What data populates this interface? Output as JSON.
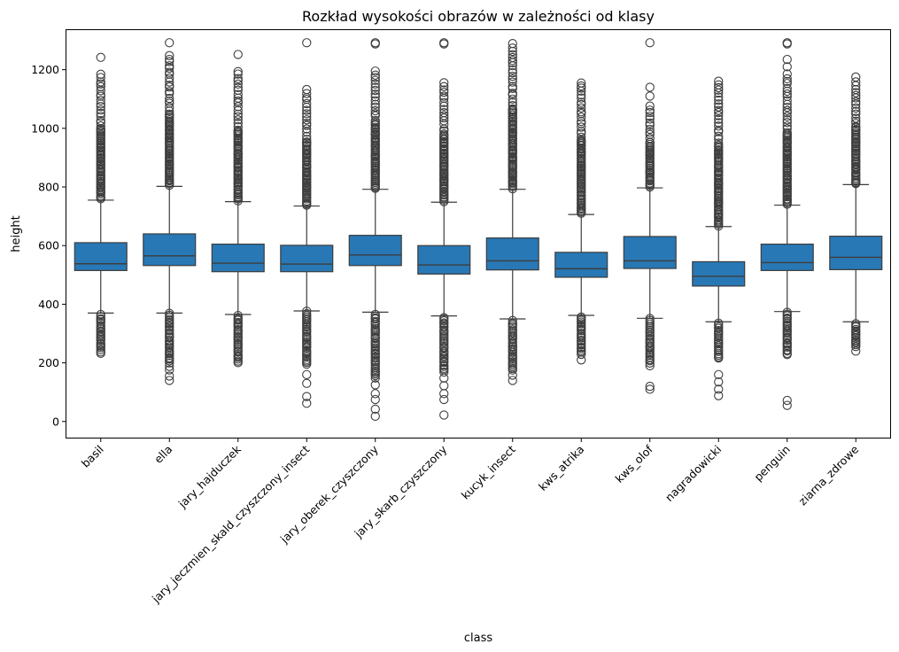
{
  "chart_data": {
    "type": "box",
    "title": "Rozkład wysokości obrazów w zależności od klasy",
    "xlabel": "class",
    "ylabel": "height",
    "ylim": [
      -55,
      1335
    ],
    "yticks": [
      0,
      200,
      400,
      600,
      800,
      1000,
      1200
    ],
    "grid": false,
    "box_color": "#2878b5",
    "edge_color": "#3d3d3d",
    "categories": [
      "basil",
      "ella",
      "jary_hajduczek",
      "jary_jeczmien_skald_czyszczony_insect",
      "jary_oberek_czyszczony",
      "jary_skarb_czyszczony",
      "kucyk_insect",
      "kws_atrika",
      "kws_olof",
      "nagradowicki",
      "penguin",
      "ziarna_zdrowe"
    ],
    "boxes": [
      {
        "q1": 515,
        "median": 538,
        "q3": 610,
        "whislo": 370,
        "whishi": 755,
        "flier_low_range": [
          232,
          368
        ],
        "flier_high_range": [
          760,
          1190
        ],
        "fliers_extra": [
          1242
        ]
      },
      {
        "q1": 532,
        "median": 565,
        "q3": 640,
        "whislo": 370,
        "whishi": 802,
        "flier_low_range": [
          200,
          368
        ],
        "flier_high_range": [
          805,
          1250
        ],
        "fliers_extra": [
          188,
          176,
          155,
          140,
          1292
        ]
      },
      {
        "q1": 511,
        "median": 540,
        "q3": 605,
        "whislo": 365,
        "whishi": 750,
        "flier_low_range": [
          200,
          363
        ],
        "flier_high_range": [
          753,
          1195
        ],
        "fliers_extra": [
          1252
        ]
      },
      {
        "q1": 511,
        "median": 537,
        "q3": 601,
        "whislo": 377,
        "whishi": 735,
        "flier_low_range": [
          195,
          375
        ],
        "flier_high_range": [
          738,
          1130
        ],
        "fliers_extra": [
          160,
          130,
          85,
          62,
          1292
        ]
      },
      {
        "q1": 532,
        "median": 568,
        "q3": 635,
        "whislo": 373,
        "whishi": 792,
        "flier_low_range": [
          150,
          371
        ],
        "flier_high_range": [
          795,
          1200
        ],
        "fliers_extra": [
          125,
          95,
          75,
          42,
          18,
          1288,
          1292
        ]
      },
      {
        "q1": 503,
        "median": 534,
        "q3": 600,
        "whislo": 360,
        "whishi": 748,
        "flier_low_range": [
          170,
          358
        ],
        "flier_high_range": [
          751,
          1165
        ],
        "fliers_extra": [
          148,
          122,
          95,
          75,
          22,
          1288,
          1292
        ]
      },
      {
        "q1": 517,
        "median": 548,
        "q3": 626,
        "whislo": 350,
        "whishi": 792,
        "flier_low_range": [
          175,
          348
        ],
        "flier_high_range": [
          795,
          1290
        ],
        "fliers_extra": [
          158,
          140
        ]
      },
      {
        "q1": 492,
        "median": 521,
        "q3": 577,
        "whislo": 362,
        "whishi": 706,
        "flier_low_range": [
          230,
          360
        ],
        "flier_high_range": [
          709,
          1165
        ],
        "fliers_extra": [
          210
        ]
      },
      {
        "q1": 522,
        "median": 548,
        "q3": 631,
        "whislo": 352,
        "whishi": 797,
        "flier_low_range": [
          200,
          350
        ],
        "flier_high_range": [
          800,
          1080
        ],
        "fliers_extra": [
          190,
          120,
          110,
          1110,
          1140,
          1292
        ]
      },
      {
        "q1": 462,
        "median": 495,
        "q3": 545,
        "whislo": 340,
        "whishi": 665,
        "flier_low_range": [
          215,
          338
        ],
        "flier_high_range": [
          668,
          1165
        ],
        "fliers_extra": [
          160,
          135,
          110,
          88
        ]
      },
      {
        "q1": 515,
        "median": 542,
        "q3": 605,
        "whislo": 375,
        "whishi": 738,
        "flier_low_range": [
          228,
          373
        ],
        "flier_high_range": [
          741,
          1185
        ],
        "fliers_extra": [
          72,
          55,
          1210,
          1235,
          1288,
          1292
        ]
      },
      {
        "q1": 518,
        "median": 560,
        "q3": 632,
        "whislo": 340,
        "whishi": 808,
        "flier_low_range": [
          255,
          338
        ],
        "flier_high_range": [
          811,
          1160
        ],
        "fliers_extra": [
          240,
          1175
        ]
      }
    ]
  }
}
